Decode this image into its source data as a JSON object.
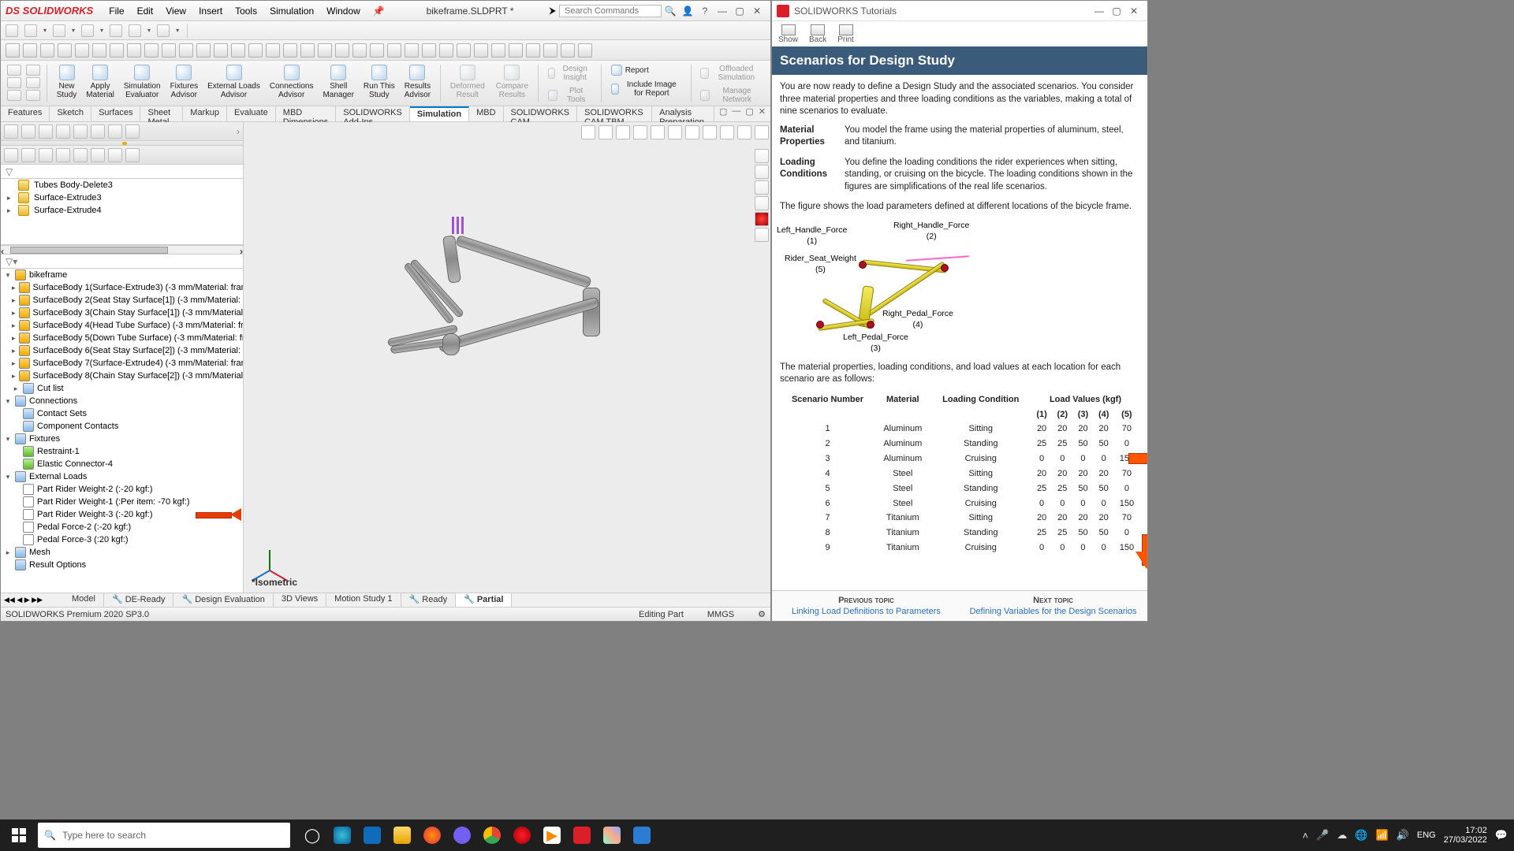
{
  "sw": {
    "brand": "SOLIDWORKS",
    "menus": [
      "File",
      "Edit",
      "View",
      "Insert",
      "Tools",
      "Simulation",
      "Window"
    ],
    "doc_title": "bikeframe.SLDPRT *",
    "search_placeholder": "Search Commands",
    "ribbon": {
      "buttons": [
        {
          "label": "New\nStudy",
          "name": "new-study-button"
        },
        {
          "label": "Apply\nMaterial",
          "name": "apply-material-button"
        },
        {
          "label": "Simulation\nEvaluator",
          "name": "sim-evaluator-button"
        },
        {
          "label": "Fixtures\nAdvisor",
          "name": "fixtures-advisor-button"
        },
        {
          "label": "External Loads\nAdvisor",
          "name": "ext-loads-advisor-button"
        },
        {
          "label": "Connections\nAdvisor",
          "name": "connections-advisor-button"
        },
        {
          "label": "Shell\nManager",
          "name": "shell-manager-button"
        },
        {
          "label": "Run This\nStudy",
          "name": "run-study-button"
        },
        {
          "label": "Results\nAdvisor",
          "name": "results-advisor-button"
        }
      ],
      "disabled": [
        {
          "label": "Deformed\nResult"
        },
        {
          "label": "Compare\nResults"
        },
        {
          "label": "Design Insight"
        },
        {
          "label": "Plot Tools"
        },
        {
          "label": "Offloaded Simulation"
        },
        {
          "label": "Manage Network"
        }
      ],
      "right": [
        {
          "label": "Report",
          "name": "report-button"
        },
        {
          "label": "Include Image for Report",
          "name": "include-image-button"
        }
      ]
    },
    "tabs": [
      "Features",
      "Sketch",
      "Surfaces",
      "Sheet Metal",
      "Markup",
      "Evaluate",
      "MBD Dimensions",
      "SOLIDWORKS Add-Ins",
      "Simulation",
      "MBD",
      "SOLIDWORKS CAM",
      "SOLIDWORKS CAM TBM",
      "Analysis Preparation"
    ],
    "tabs_active": "Simulation",
    "feature_tree": [
      "Tubes Body-Delete3",
      "Surface-Extrude3",
      "Surface-Extrude4"
    ],
    "sim_tree": {
      "root": "bikeframe",
      "surfaces": [
        "SurfaceBody 1(Surface-Extrude3) (-3 mm/Material: fram",
        "SurfaceBody 2(Seat Stay Surface[1]) (-3 mm/Material: fr",
        "SurfaceBody 3(Chain Stay Surface[1]) (-3 mm/Material:",
        "SurfaceBody 4(Head Tube Surface) (-3 mm/Material: fra",
        "SurfaceBody 5(Down Tube Surface) (-3 mm/Material: fra",
        "SurfaceBody 6(Seat Stay Surface[2]) (-3 mm/Material: fr",
        "SurfaceBody 7(Surface-Extrude4) (-3 mm/Material: fram",
        "SurfaceBody 8(Chain Stay Surface[2]) (-3 mm/Material:"
      ],
      "cutlist": "Cut list",
      "connections": "Connections",
      "contact_sets": "Contact Sets",
      "component_contacts": "Component Contacts",
      "fixtures": "Fixtures",
      "restraint": "Restraint-1",
      "elastic": "Elastic Connector-4",
      "external_loads": "External Loads",
      "loads": [
        "Part Rider Weight-2 (:-20 kgf:)",
        "Part Rider Weight-1 (:Per item: -70 kgf:)",
        "Part Rider Weight-3 (:-20 kgf:)",
        "Pedal Force-2 (:-20 kgf:)",
        "Pedal Force-3 (:20 kgf:)"
      ],
      "mesh": "Mesh",
      "result_options": "Result Options"
    },
    "viewport_label": "*Isometric",
    "bottom_tabs": [
      "Model",
      "DE-Ready",
      "Design Evaluation",
      "3D Views",
      "Motion Study 1",
      "Ready",
      "Partial"
    ],
    "bottom_active": "Partial",
    "status_left": "SOLIDWORKS Premium 2020 SP3.0",
    "status_mid": "Editing Part",
    "status_units": "MMGS"
  },
  "tutorial": {
    "window_title": "SOLIDWORKS Tutorials",
    "nav": [
      "Show",
      "Back",
      "Print"
    ],
    "header": "Scenarios for Design Study",
    "intro": "You are now ready to define a Design Study and the associated scenarios. You consider three material properties and three loading conditions as the variables, making a total of nine scenarios to evaluate.",
    "def1_term": "Material Properties",
    "def1_desc": "You model the frame using the material properties of aluminum, steel, and titanium.",
    "def2_term": "Loading Conditions",
    "def2_desc": "You define the loading conditions the rider experiences when sitting, standing, or cruising on the bicycle. The loading conditions shown in the figures are simplifications of the real life scenarios.",
    "fig_caption": "The figure shows the load parameters defined at different locations of the bicycle frame.",
    "diagram_labels": {
      "left_handle": "Left_Handle_Force\n(1)",
      "right_handle": "Right_Handle_Force\n(2)",
      "rider_seat": "Rider_Seat_Weight\n(5)",
      "right_pedal": "Right_Pedal_Force\n(4)",
      "left_pedal": "Left_Pedal_Force\n(3)"
    },
    "table_intro": "The material properties, loading conditions, and load values at each location for each scenario are as follows:",
    "table": {
      "headers": [
        "Scenario Number",
        "Material",
        "Loading Condition",
        "Load Values (kgf)"
      ],
      "subheaders": [
        "(1)",
        "(2)",
        "(3)",
        "(4)",
        "(5)"
      ],
      "rows": [
        [
          "1",
          "Aluminum",
          "Sitting",
          "20",
          "20",
          "20",
          "20",
          "70"
        ],
        [
          "2",
          "Aluminum",
          "Standing",
          "25",
          "25",
          "50",
          "50",
          "0"
        ],
        [
          "3",
          "Aluminum",
          "Cruising",
          "0",
          "0",
          "0",
          "0",
          "150"
        ],
        [
          "4",
          "Steel",
          "Sitting",
          "20",
          "20",
          "20",
          "20",
          "70"
        ],
        [
          "5",
          "Steel",
          "Standing",
          "25",
          "25",
          "50",
          "50",
          "0"
        ],
        [
          "6",
          "Steel",
          "Cruising",
          "0",
          "0",
          "0",
          "0",
          "150"
        ],
        [
          "7",
          "Titanium",
          "Sitting",
          "20",
          "20",
          "20",
          "20",
          "70"
        ],
        [
          "8",
          "Titanium",
          "Standing",
          "25",
          "25",
          "50",
          "50",
          "0"
        ],
        [
          "9",
          "Titanium",
          "Cruising",
          "0",
          "0",
          "0",
          "0",
          "150"
        ]
      ]
    },
    "prev_hdr": "Previous topic",
    "prev_link": "Linking Load Definitions to Parameters",
    "next_hdr": "Next topic",
    "next_link": "Defining Variables for the Design Scenarios"
  },
  "taskbar": {
    "search_placeholder": "Type here to search",
    "lang": "ENG",
    "time": "17:02",
    "date": "27/03/2022"
  },
  "colors": {
    "accent_red": "#da1f28",
    "header_blue": "#3a5c7a",
    "arrow_orange": "#ff5500"
  }
}
